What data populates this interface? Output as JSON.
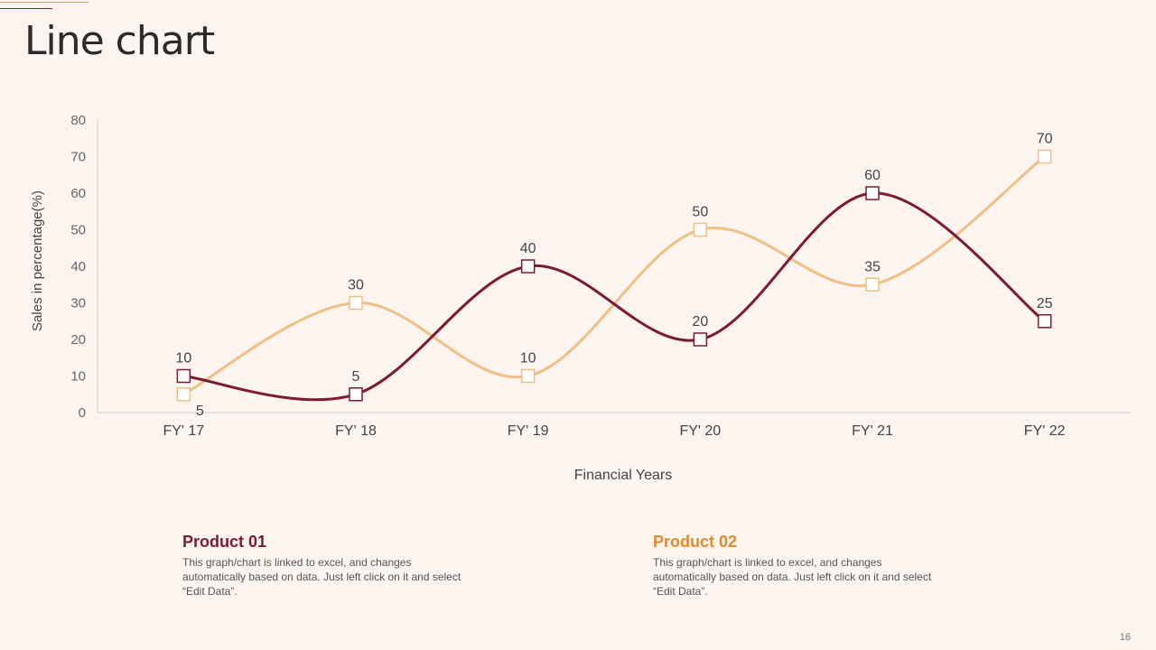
{
  "slide": {
    "title": "Line chart",
    "page_number": "16"
  },
  "colors": {
    "background": "#fcf4ee",
    "product01": "#7d1a33",
    "product02": "#efbf85",
    "product02_title": "#e08a2e",
    "axis": "#cccccc",
    "text": "#555555"
  },
  "chart_data": {
    "type": "line",
    "categories": [
      "FY' 17",
      "FY' 18",
      "FY' 19",
      "FY' 20",
      "FY' 21",
      "FY' 22"
    ],
    "series": [
      {
        "name": "Product 01",
        "values": [
          10,
          5,
          40,
          20,
          60,
          25
        ],
        "label_position": [
          "above",
          "above",
          "above",
          "above",
          "above",
          "above"
        ]
      },
      {
        "name": "Product 02",
        "values": [
          5,
          30,
          10,
          50,
          35,
          70
        ],
        "label_position": [
          "below",
          "above",
          "above",
          "above",
          "above",
          "above"
        ]
      }
    ],
    "xlabel": "Financial Years",
    "ylabel": "Sales in percentage(%)",
    "ylim": [
      0,
      80
    ],
    "yticks": [
      0,
      10,
      20,
      30,
      40,
      50,
      60,
      70,
      80
    ],
    "grid": false,
    "marker": "square",
    "smooth": true
  },
  "products": [
    {
      "title": "Product 01",
      "description": "This graph/chart is linked to excel, and changes automatically based on data. Just left click on it and select “Edit Data”."
    },
    {
      "title": "Product 02",
      "description": "This graph/chart is linked to excel, and changes automatically based on data. Just left click on it and select “Edit Data”."
    }
  ]
}
